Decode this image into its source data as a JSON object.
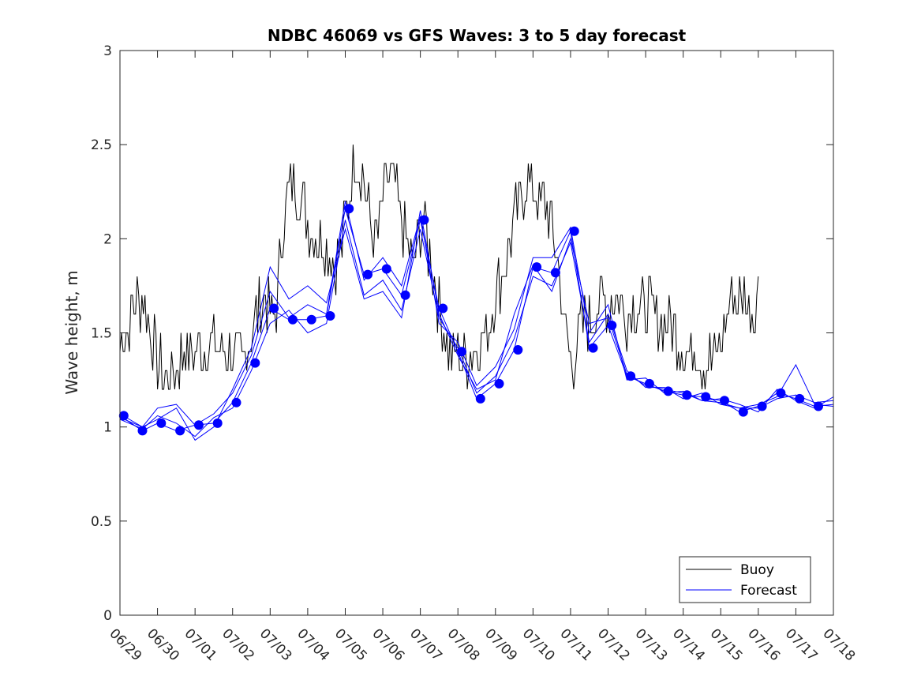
{
  "chart_data": {
    "type": "line",
    "title": "NDBC 46069 vs GFS Waves: 3 to 5 day forecast",
    "xlabel": "",
    "ylabel": "Wave height, m",
    "ylim": [
      0,
      3
    ],
    "yticks": [
      "0",
      "0.5",
      "1",
      "1.5",
      "2",
      "2.5",
      "3"
    ],
    "xlim_days": [
      0,
      19
    ],
    "xticks": [
      "06/29",
      "06/30",
      "07/01",
      "07/02",
      "07/03",
      "07/04",
      "07/05",
      "07/06",
      "07/07",
      "07/08",
      "07/09",
      "07/10",
      "07/11",
      "07/12",
      "07/13",
      "07/14",
      "07/15",
      "07/16",
      "07/17",
      "07/18"
    ],
    "grid": false,
    "legend": {
      "placement": "bottom-right",
      "entries": [
        {
          "label": "Buoy",
          "color": "#000000"
        },
        {
          "label": "Forecast",
          "color": "#0000ff"
        }
      ]
    },
    "colors": {
      "buoy": "#000000",
      "forecast": "#0000ff",
      "marker": "#0000ff"
    },
    "buoy_anchors": [
      [
        0.0,
        1.45
      ],
      [
        0.15,
        1.5
      ],
      [
        0.3,
        1.6
      ],
      [
        0.45,
        1.7
      ],
      [
        0.65,
        1.65
      ],
      [
        0.85,
        1.5
      ],
      [
        1.0,
        1.35
      ],
      [
        1.2,
        1.25
      ],
      [
        1.45,
        1.3
      ],
      [
        1.7,
        1.4
      ],
      [
        2.0,
        1.4
      ],
      [
        2.3,
        1.45
      ],
      [
        2.6,
        1.42
      ],
      [
        2.9,
        1.4
      ],
      [
        3.1,
        1.35
      ],
      [
        3.25,
        1.35
      ],
      [
        3.4,
        1.45
      ],
      [
        3.55,
        1.55
      ],
      [
        3.7,
        1.6
      ],
      [
        3.85,
        1.7
      ],
      [
        4.0,
        1.6
      ],
      [
        4.1,
        1.55
      ],
      [
        4.2,
        1.7
      ],
      [
        4.35,
        2.1
      ],
      [
        4.5,
        2.25
      ],
      [
        4.65,
        2.3
      ],
      [
        4.8,
        2.2
      ],
      [
        4.95,
        2.15
      ],
      [
        5.1,
        2.05
      ],
      [
        5.25,
        2.0
      ],
      [
        5.4,
        2.0
      ],
      [
        5.55,
        1.95
      ],
      [
        5.7,
        1.85
      ],
      [
        5.85,
        1.9
      ],
      [
        6.0,
        2.1
      ],
      [
        6.15,
        2.3
      ],
      [
        6.3,
        2.45
      ],
      [
        6.45,
        2.35
      ],
      [
        6.6,
        2.15
      ],
      [
        6.75,
        2.0
      ],
      [
        6.9,
        2.05
      ],
      [
        7.05,
        2.25
      ],
      [
        7.2,
        2.35
      ],
      [
        7.35,
        2.25
      ],
      [
        7.5,
        2.1
      ],
      [
        7.65,
        1.95
      ],
      [
        7.8,
        1.85
      ],
      [
        7.95,
        2.05
      ],
      [
        8.1,
        2.1
      ],
      [
        8.25,
        1.9
      ],
      [
        8.4,
        1.75
      ],
      [
        8.55,
        1.6
      ],
      [
        8.7,
        1.45
      ],
      [
        8.85,
        1.4
      ],
      [
        9.0,
        1.4
      ],
      [
        9.2,
        1.35
      ],
      [
        9.4,
        1.4
      ],
      [
        9.6,
        1.45
      ],
      [
        9.8,
        1.5
      ],
      [
        10.0,
        1.7
      ],
      [
        10.2,
        1.85
      ],
      [
        10.4,
        2.0
      ],
      [
        10.55,
        2.15
      ],
      [
        10.7,
        2.25
      ],
      [
        10.85,
        2.3
      ],
      [
        11.0,
        2.3
      ],
      [
        11.15,
        2.2
      ],
      [
        11.3,
        2.2
      ],
      [
        11.45,
        2.1
      ],
      [
        11.6,
        1.95
      ],
      [
        11.75,
        1.7
      ],
      [
        11.85,
        1.5
      ],
      [
        12.0,
        1.4
      ],
      [
        12.1,
        1.35
      ],
      [
        12.25,
        1.5
      ],
      [
        12.4,
        1.6
      ],
      [
        12.55,
        1.55
      ],
      [
        12.7,
        1.65
      ],
      [
        12.85,
        1.7
      ],
      [
        13.0,
        1.6
      ],
      [
        13.15,
        1.7
      ],
      [
        13.3,
        1.7
      ],
      [
        13.5,
        1.6
      ],
      [
        13.7,
        1.65
      ],
      [
        13.9,
        1.6
      ],
      [
        14.1,
        1.65
      ],
      [
        14.3,
        1.55
      ],
      [
        14.5,
        1.6
      ],
      [
        14.7,
        1.55
      ],
      [
        14.9,
        1.45
      ],
      [
        15.1,
        1.4
      ],
      [
        15.3,
        1.4
      ],
      [
        15.5,
        1.35
      ],
      [
        15.7,
        1.35
      ],
      [
        15.9,
        1.4
      ],
      [
        16.0,
        1.45
      ],
      [
        16.15,
        1.6
      ],
      [
        16.3,
        1.7
      ],
      [
        16.45,
        1.65
      ],
      [
        16.6,
        1.7
      ],
      [
        16.75,
        1.65
      ],
      [
        16.9,
        1.6
      ],
      [
        17.0,
        1.75
      ]
    ],
    "forecast_runs": [
      {
        "x": [
          0.0,
          0.6,
          1.0,
          1.5,
          2.0,
          2.5,
          3.0,
          3.5,
          4.0,
          4.5,
          5.0,
          5.5,
          6.0,
          6.5,
          7.0,
          7.5,
          8.0,
          8.5,
          9.0,
          9.5,
          10.0,
          10.5,
          11.0,
          11.5,
          12.0,
          12.5,
          13.0,
          13.5,
          14.0,
          14.5,
          15.0,
          15.5,
          16.0,
          16.5,
          17.0,
          17.5,
          18.0,
          18.5,
          19.0
        ],
        "y": [
          1.06,
          0.98,
          1.02,
          0.98,
          1.01,
          1.02,
          1.13,
          1.34,
          1.63,
          1.57,
          1.57,
          1.59,
          2.16,
          1.81,
          1.84,
          1.7,
          2.1,
          1.63,
          1.4,
          1.15,
          1.23,
          1.41,
          1.85,
          1.82,
          2.04,
          1.42,
          1.54,
          1.27,
          1.23,
          1.19,
          1.17,
          1.16,
          1.14,
          1.08,
          1.11,
          1.18,
          1.15,
          1.11,
          1.12
        ]
      },
      {
        "x": [
          0.0,
          0.6,
          1.0,
          1.5,
          2.0,
          2.5,
          3.0,
          3.5,
          4.0,
          4.5,
          5.0,
          5.5,
          6.0,
          6.5,
          7.0,
          7.5,
          8.0,
          8.5,
          9.0,
          9.5,
          10.0,
          10.5,
          11.0,
          11.5,
          12.0,
          12.5,
          13.0,
          13.5,
          14.0,
          14.5,
          15.0,
          15.5,
          16.0,
          16.5,
          17.0,
          17.5,
          18.0,
          18.5,
          19.0
        ],
        "y": [
          1.04,
          0.99,
          1.06,
          1.02,
          0.95,
          1.05,
          1.1,
          1.3,
          1.55,
          1.62,
          1.5,
          1.55,
          2.1,
          1.7,
          1.78,
          1.62,
          2.05,
          1.58,
          1.42,
          1.18,
          1.27,
          1.47,
          1.8,
          1.75,
          1.98,
          1.45,
          1.6,
          1.3,
          1.21,
          1.21,
          1.15,
          1.18,
          1.12,
          1.1,
          1.1,
          1.15,
          1.17,
          1.13,
          1.14
        ]
      },
      {
        "x": [
          0.0,
          0.6,
          1.0,
          1.5,
          2.0,
          2.5,
          3.0,
          3.5,
          4.0,
          4.5,
          5.0,
          5.5,
          6.0,
          6.5,
          7.0,
          7.5,
          8.0,
          8.5,
          9.0,
          9.5,
          10.0,
          10.5,
          11.0,
          11.5,
          12.0,
          12.5,
          13.0,
          13.5,
          14.0,
          14.5,
          15.0,
          15.5,
          16.0,
          16.5,
          17.0,
          17.5,
          18.0,
          18.5,
          19.0
        ],
        "y": [
          1.05,
          1.0,
          1.1,
          1.12,
          1.01,
          1.07,
          1.18,
          1.38,
          1.72,
          1.58,
          1.65,
          1.6,
          2.2,
          1.78,
          1.9,
          1.75,
          2.12,
          1.55,
          1.45,
          1.22,
          1.32,
          1.52,
          1.9,
          1.9,
          2.06,
          1.5,
          1.65,
          1.25,
          1.26,
          1.18,
          1.19,
          1.14,
          1.15,
          1.12,
          1.08,
          1.2,
          1.14,
          1.1,
          1.16
        ]
      },
      {
        "x": [
          0.0,
          0.6,
          1.0,
          1.5,
          2.0,
          2.5,
          3.0,
          3.5,
          4.0,
          4.5,
          5.0,
          5.5,
          6.0,
          6.5,
          7.0,
          7.5,
          8.0,
          8.5,
          9.0,
          9.5,
          10.0,
          10.5,
          11.0,
          11.5,
          12.0,
          12.5,
          13.0,
          13.5,
          14.0,
          14.5,
          15.0,
          15.5,
          16.0,
          16.5,
          17.0,
          17.5,
          18.0,
          18.5,
          19.0
        ],
        "y": [
          1.07,
          1.0,
          1.04,
          1.1,
          0.93,
          1.0,
          1.2,
          1.42,
          1.85,
          1.68,
          1.75,
          1.66,
          2.05,
          1.68,
          1.72,
          1.58,
          2.15,
          1.6,
          1.38,
          1.2,
          1.25,
          1.6,
          1.86,
          1.72,
          2.0,
          1.55,
          1.58,
          1.28,
          1.22,
          1.2,
          1.18,
          1.14,
          1.13,
          1.1,
          1.12,
          1.16,
          1.33,
          1.12,
          1.11
        ]
      }
    ],
    "forecast_markers": [
      [
        0.1,
        1.06
      ],
      [
        0.6,
        0.98
      ],
      [
        1.1,
        1.02
      ],
      [
        1.6,
        0.98
      ],
      [
        2.1,
        1.01
      ],
      [
        2.6,
        1.02
      ],
      [
        3.1,
        1.13
      ],
      [
        3.6,
        1.34
      ],
      [
        4.1,
        1.63
      ],
      [
        4.6,
        1.57
      ],
      [
        5.1,
        1.57
      ],
      [
        5.6,
        1.59
      ],
      [
        6.1,
        2.16
      ],
      [
        6.6,
        1.81
      ],
      [
        7.1,
        1.84
      ],
      [
        7.6,
        1.7
      ],
      [
        8.1,
        2.1
      ],
      [
        8.6,
        1.63
      ],
      [
        9.1,
        1.4
      ],
      [
        9.6,
        1.15
      ],
      [
        10.1,
        1.23
      ],
      [
        10.6,
        1.41
      ],
      [
        11.1,
        1.85
      ],
      [
        11.6,
        1.82
      ],
      [
        12.1,
        2.04
      ],
      [
        12.6,
        1.42
      ],
      [
        13.1,
        1.54
      ],
      [
        13.6,
        1.27
      ],
      [
        14.1,
        1.23
      ],
      [
        14.6,
        1.19
      ],
      [
        15.1,
        1.17
      ],
      [
        15.6,
        1.16
      ],
      [
        16.1,
        1.14
      ],
      [
        16.6,
        1.08
      ],
      [
        17.1,
        1.11
      ],
      [
        17.6,
        1.18
      ],
      [
        18.1,
        1.15
      ],
      [
        18.6,
        1.11
      ]
    ]
  }
}
